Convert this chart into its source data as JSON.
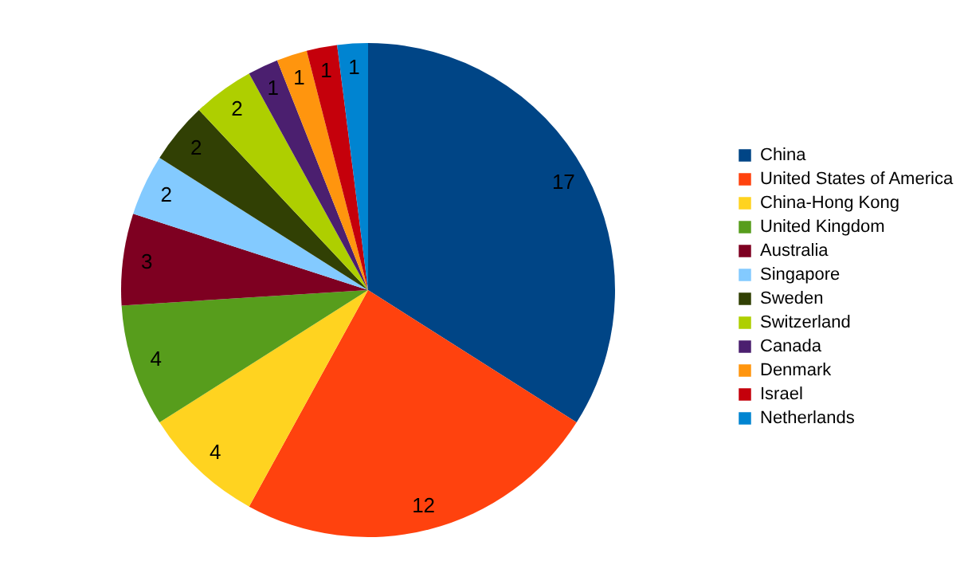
{
  "chart_data": {
    "type": "pie",
    "categories": [
      "China",
      "United States of America",
      "China-Hong Kong",
      "United Kingdom",
      "Australia",
      "Singapore",
      "Sweden",
      "Switzerland",
      "Canada",
      "Denmark",
      "Israel",
      "Netherlands"
    ],
    "values": [
      17,
      12,
      4,
      4,
      3,
      2,
      2,
      2,
      1,
      1,
      1,
      1
    ],
    "colors": [
      "#004586",
      "#ff420e",
      "#ffd320",
      "#579d1c",
      "#7e0021",
      "#83caff",
      "#314004",
      "#aecf00",
      "#4b1f6f",
      "#ff950e",
      "#c5000b",
      "#0084d1"
    ],
    "data_labels": true,
    "legend": "right"
  }
}
